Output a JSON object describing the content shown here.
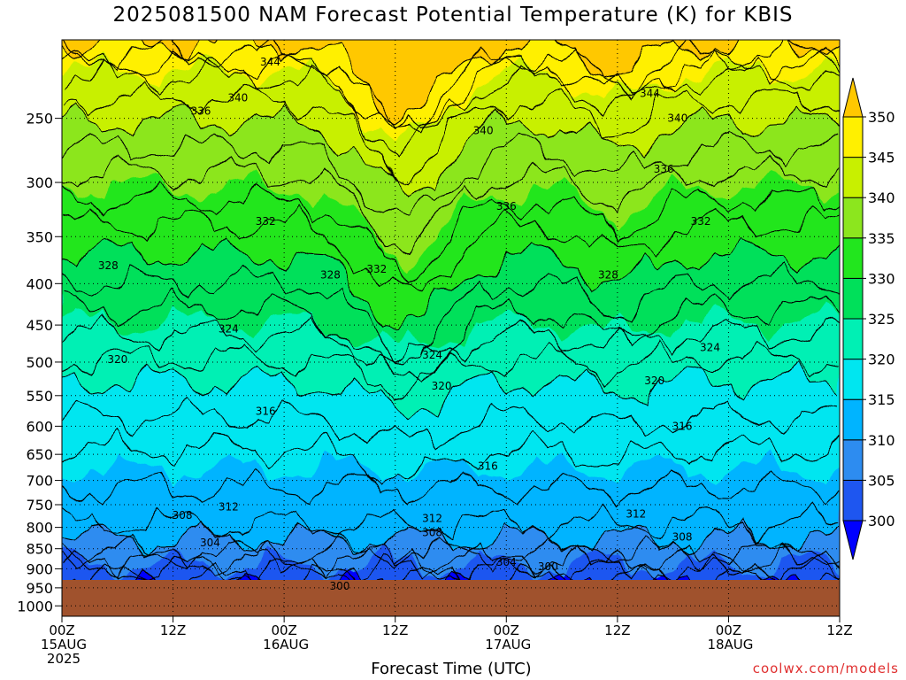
{
  "title": "2025081500 NAM Forecast Potential Temperature (K) for KBIS",
  "x_axis_title": "Forecast Time (UTC)",
  "credit": "coolwx.com/models",
  "colors": {
    "ground": "#a0522d",
    "bands": [
      "#0000ff",
      "#1e56f0",
      "#2d8cf0",
      "#00b4ff",
      "#00e6f0",
      "#00f0b4",
      "#00e05a",
      "#22e61e",
      "#8ce61e",
      "#c8f000",
      "#fff000",
      "#ffc800"
    ]
  },
  "chart_data": {
    "type": "heatmap",
    "title": "2025081500 NAM Forecast Potential Temperature (K) for KBIS",
    "xlabel": "Forecast Time (UTC)",
    "ylabel": "",
    "x_ticks": [
      {
        "top": "00Z",
        "mid": "15AUG",
        "bot": "2025"
      },
      {
        "top": "12Z",
        "mid": "",
        "bot": ""
      },
      {
        "top": "00Z",
        "mid": "16AUG",
        "bot": ""
      },
      {
        "top": "12Z",
        "mid": "",
        "bot": ""
      },
      {
        "top": "00Z",
        "mid": "17AUG",
        "bot": ""
      },
      {
        "top": "12Z",
        "mid": "",
        "bot": ""
      },
      {
        "top": "00Z",
        "mid": "18AUG",
        "bot": ""
      },
      {
        "top": "12Z",
        "mid": "",
        "bot": ""
      }
    ],
    "x_hours": [
      0,
      12,
      24,
      36,
      48,
      60,
      72,
      84
    ],
    "xlim": [
      0,
      84
    ],
    "y_ticks": [
      250,
      300,
      350,
      400,
      450,
      500,
      550,
      600,
      650,
      700,
      750,
      800,
      850,
      900,
      950,
      1000
    ],
    "ylim": [
      200,
      1030
    ],
    "y_scale": "log (pressure, hPa), inverted",
    "grid": true,
    "surface_pressure_hPa": 950,
    "colorbar": {
      "levels": [
        300,
        305,
        310,
        315,
        320,
        325,
        330,
        335,
        340,
        345,
        350
      ],
      "units": "K",
      "extend": "both"
    },
    "contour_interval_K": 2,
    "contour_labels": [
      {
        "hour": 22.5,
        "p": 213,
        "text": "344"
      },
      {
        "hour": 19,
        "p": 236,
        "text": "340"
      },
      {
        "hour": 15,
        "p": 245,
        "text": "336"
      },
      {
        "hour": 45.5,
        "p": 259,
        "text": "340"
      },
      {
        "hour": 63.5,
        "p": 233,
        "text": "344"
      },
      {
        "hour": 66.5,
        "p": 250,
        "text": "340"
      },
      {
        "hour": 65,
        "p": 289,
        "text": "336"
      },
      {
        "hour": 48,
        "p": 321,
        "text": "336"
      },
      {
        "hour": 22,
        "p": 335,
        "text": "332"
      },
      {
        "hour": 69,
        "p": 335,
        "text": "332"
      },
      {
        "hour": 5,
        "p": 380,
        "text": "328"
      },
      {
        "hour": 29,
        "p": 390,
        "text": "328"
      },
      {
        "hour": 34,
        "p": 384,
        "text": "332"
      },
      {
        "hour": 59,
        "p": 390,
        "text": "328"
      },
      {
        "hour": 18,
        "p": 455,
        "text": "324"
      },
      {
        "hour": 40,
        "p": 490,
        "text": "324"
      },
      {
        "hour": 70,
        "p": 480,
        "text": "324"
      },
      {
        "hour": 6,
        "p": 496,
        "text": "320"
      },
      {
        "hour": 41,
        "p": 535,
        "text": "320"
      },
      {
        "hour": 64,
        "p": 527,
        "text": "320"
      },
      {
        "hour": 22,
        "p": 575,
        "text": "316"
      },
      {
        "hour": 67,
        "p": 600,
        "text": "316"
      },
      {
        "hour": 46,
        "p": 672,
        "text": "316"
      },
      {
        "hour": 18,
        "p": 755,
        "text": "312"
      },
      {
        "hour": 40,
        "p": 780,
        "text": "312"
      },
      {
        "hour": 62,
        "p": 770,
        "text": "312"
      },
      {
        "hour": 13,
        "p": 773,
        "text": "308"
      },
      {
        "hour": 40,
        "p": 812,
        "text": "308"
      },
      {
        "hour": 67,
        "p": 822,
        "text": "308"
      },
      {
        "hour": 16,
        "p": 836,
        "text": "304"
      },
      {
        "hour": 48,
        "p": 883,
        "text": "304"
      },
      {
        "hour": 52.5,
        "p": 895,
        "text": "300"
      },
      {
        "hour": 30,
        "p": 945,
        "text": "300"
      }
    ]
  }
}
